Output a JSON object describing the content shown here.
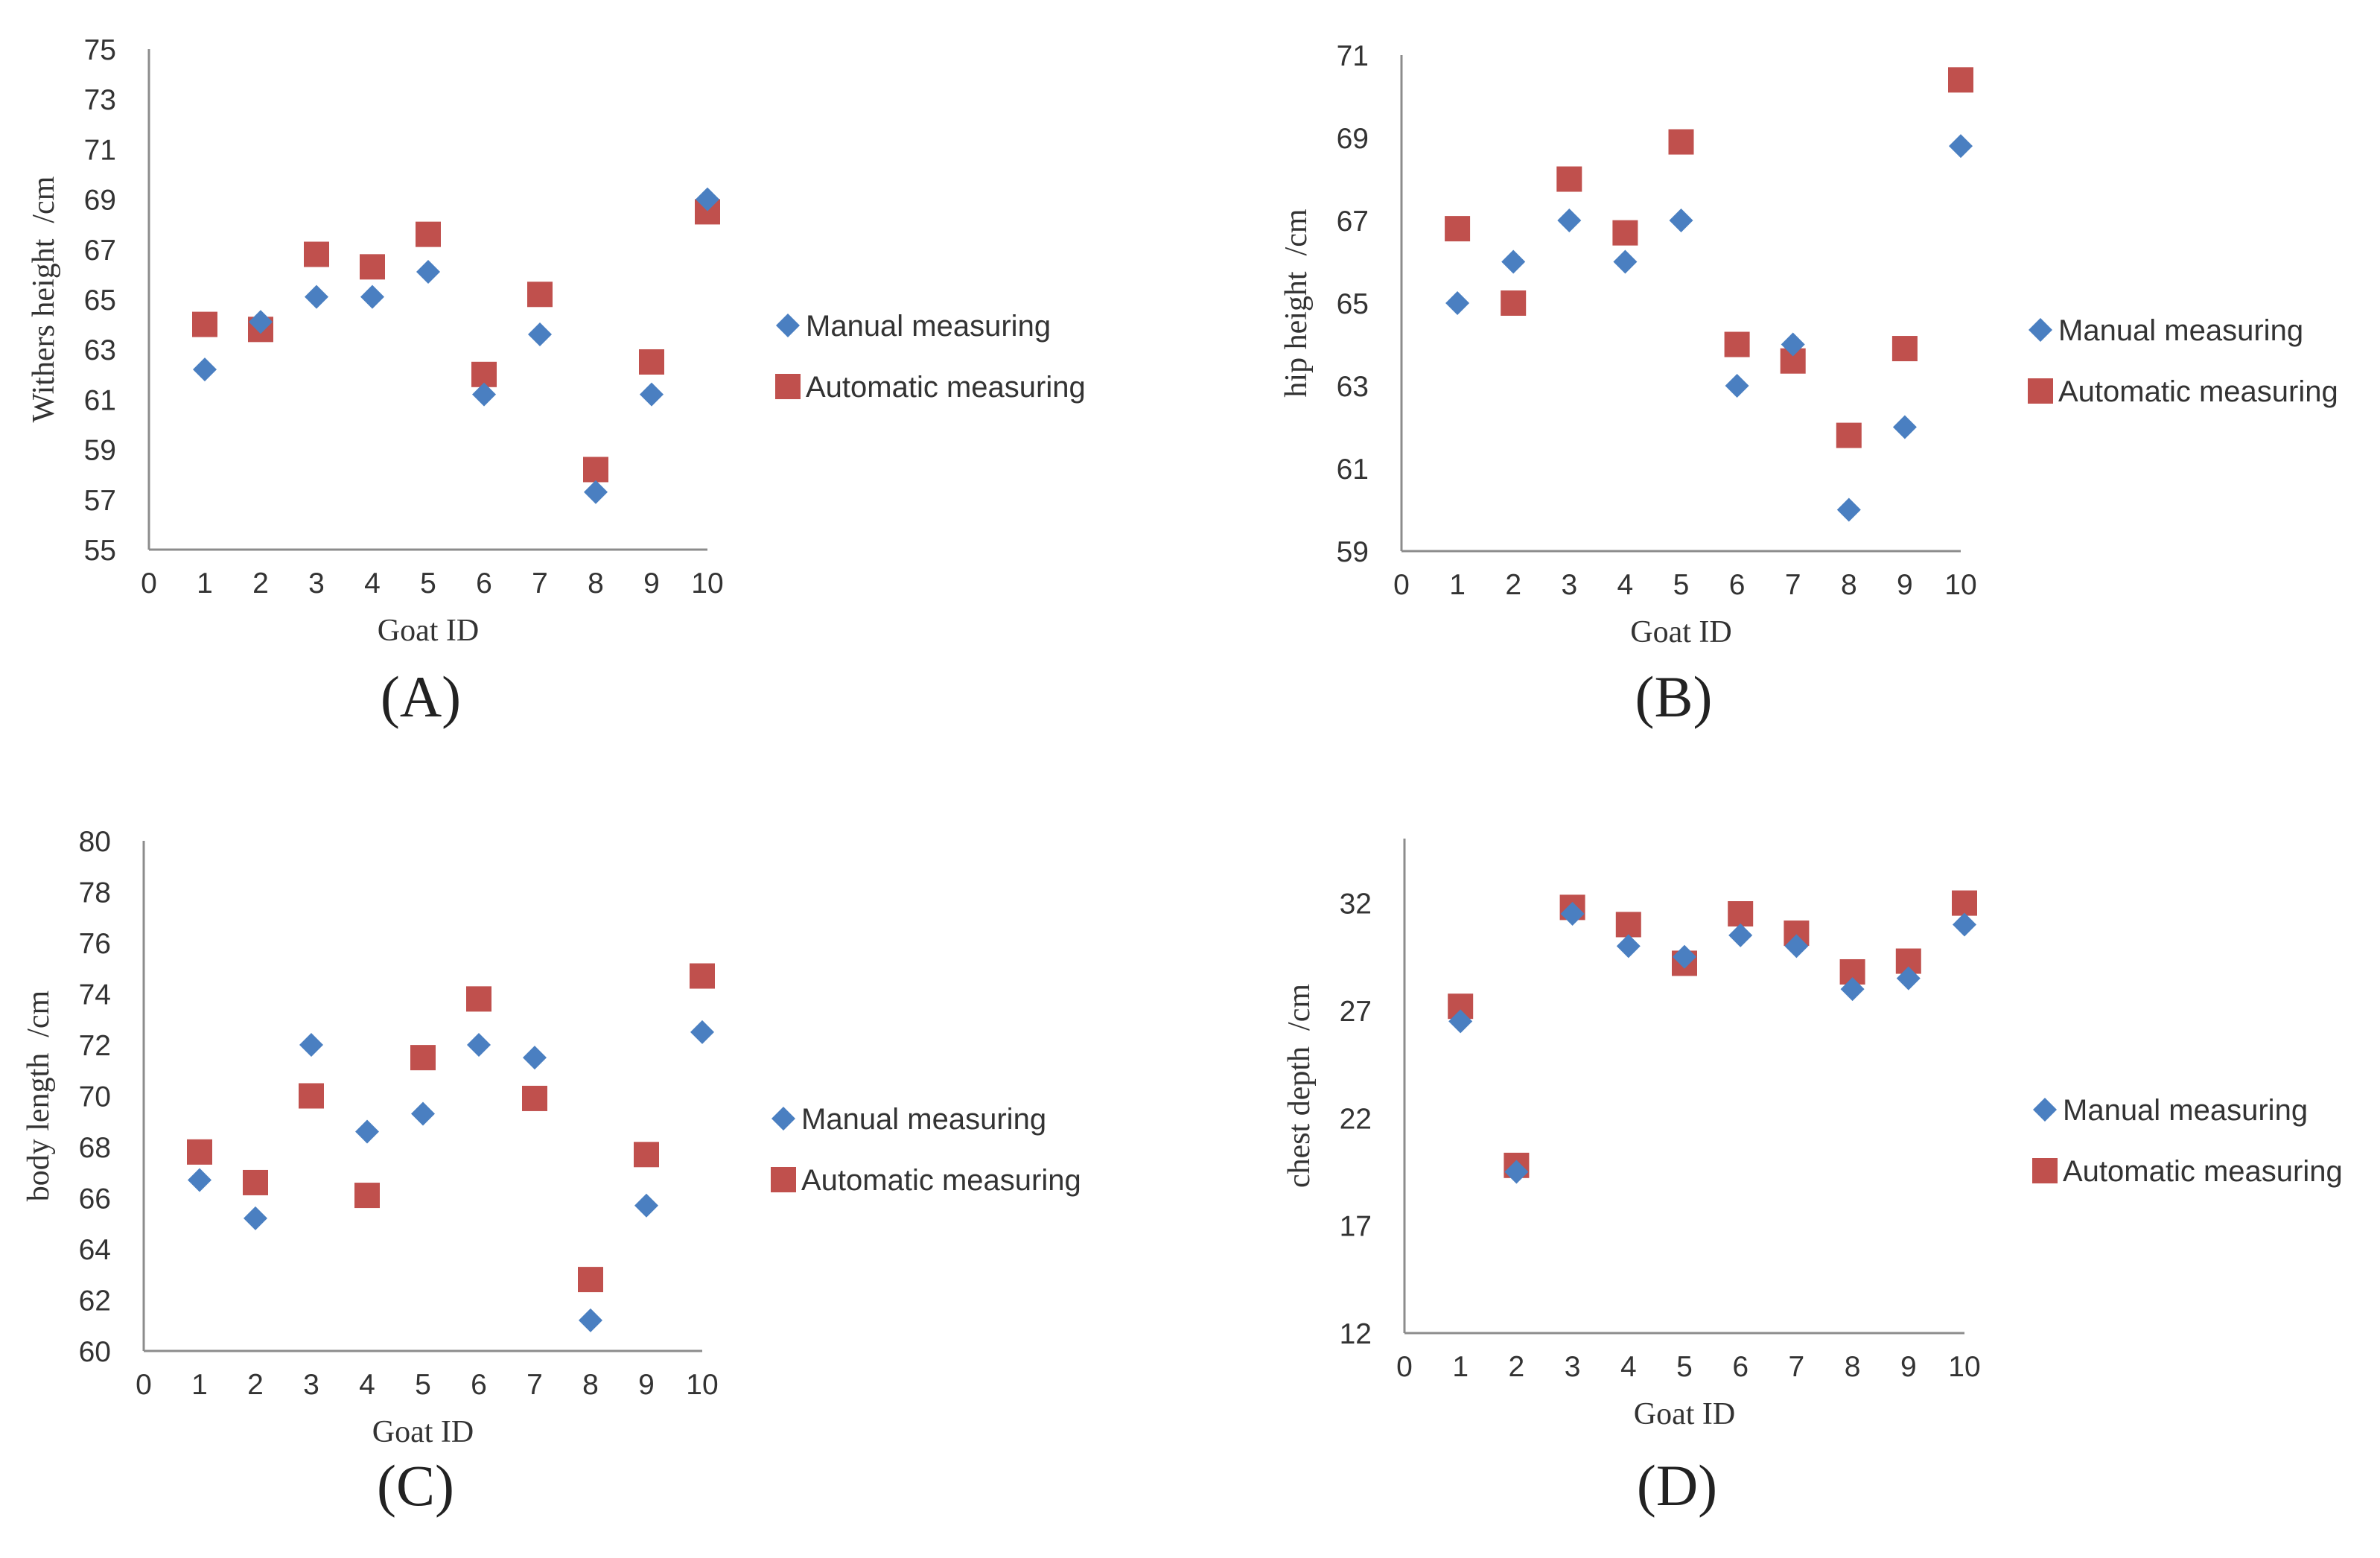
{
  "colors": {
    "manual": "#4a7fc1",
    "automatic": "#c0504d"
  },
  "chart_data": [
    {
      "type": "scatter",
      "panel_label": "(A)",
      "xlabel": "Goat ID",
      "ylabel": "Withers height  /cm",
      "xlim": [
        0,
        10
      ],
      "ylim": [
        55,
        75
      ],
      "xticks": [
        0,
        1,
        2,
        3,
        4,
        5,
        6,
        7,
        8,
        9,
        10
      ],
      "yticks": [
        55,
        57,
        59,
        61,
        63,
        65,
        67,
        69,
        71,
        73,
        75
      ],
      "legend_position": "right",
      "series": [
        {
          "name": "Manual measuring",
          "marker": "diamond",
          "x": [
            1,
            2,
            3,
            4,
            5,
            6,
            7,
            8,
            9,
            10
          ],
          "y": [
            62.2,
            64.1,
            65.1,
            65.1,
            66.1,
            61.2,
            63.6,
            57.3,
            61.2,
            69.0
          ]
        },
        {
          "name": "Automatic measuring",
          "marker": "square",
          "x": [
            1,
            2,
            3,
            4,
            5,
            6,
            7,
            8,
            9,
            10
          ],
          "y": [
            64.0,
            63.8,
            66.8,
            66.3,
            67.6,
            62.0,
            65.2,
            58.2,
            62.5,
            68.5
          ]
        }
      ]
    },
    {
      "type": "scatter",
      "panel_label": "(B)",
      "xlabel": "Goat ID",
      "ylabel": "hip height  /cm",
      "xlim": [
        0,
        10
      ],
      "ylim": [
        59,
        71
      ],
      "xticks": [
        0,
        1,
        2,
        3,
        4,
        5,
        6,
        7,
        8,
        9,
        10
      ],
      "yticks": [
        59,
        61,
        63,
        65,
        67,
        69,
        71
      ],
      "legend_position": "right",
      "series": [
        {
          "name": "Manual measuring",
          "marker": "diamond",
          "x": [
            1,
            2,
            3,
            4,
            5,
            6,
            7,
            8,
            9,
            10
          ],
          "y": [
            65.0,
            66.0,
            67.0,
            66.0,
            67.0,
            63.0,
            64.0,
            60.0,
            62.0,
            68.8
          ]
        },
        {
          "name": "Automatic measuring",
          "marker": "square",
          "x": [
            1,
            2,
            3,
            4,
            5,
            6,
            7,
            8,
            9,
            10
          ],
          "y": [
            66.8,
            65.0,
            68.0,
            66.7,
            68.9,
            64.0,
            63.6,
            61.8,
            63.9,
            70.4
          ]
        }
      ]
    },
    {
      "type": "scatter",
      "panel_label": "(C)",
      "xlabel": "Goat ID",
      "ylabel": "body length  /cm",
      "xlim": [
        0,
        10
      ],
      "ylim": [
        60,
        80
      ],
      "xticks": [
        0,
        1,
        2,
        3,
        4,
        5,
        6,
        7,
        8,
        9,
        10
      ],
      "yticks": [
        60,
        62,
        64,
        66,
        68,
        70,
        72,
        74,
        76,
        78,
        80
      ],
      "legend_position": "right",
      "series": [
        {
          "name": "Manual measuring",
          "marker": "diamond",
          "x": [
            1,
            2,
            3,
            4,
            5,
            6,
            7,
            8,
            9,
            10
          ],
          "y": [
            66.7,
            65.2,
            72.0,
            68.6,
            69.3,
            72.0,
            71.5,
            61.2,
            65.7,
            72.5
          ]
        },
        {
          "name": "Automatic measuring",
          "marker": "square",
          "x": [
            1,
            2,
            3,
            4,
            5,
            6,
            7,
            8,
            9,
            10
          ],
          "y": [
            67.8,
            66.6,
            70.0,
            66.1,
            71.5,
            73.8,
            69.9,
            62.8,
            67.7,
            74.7
          ]
        }
      ]
    },
    {
      "type": "scatter",
      "panel_label": "(D)",
      "xlabel": "Goat ID",
      "ylabel": "chest depth  /cm",
      "xlim": [
        0,
        10
      ],
      "ylim": [
        12,
        35
      ],
      "xticks": [
        0,
        1,
        2,
        3,
        4,
        5,
        6,
        7,
        8,
        9,
        10
      ],
      "yticks": [
        12,
        17,
        22,
        27,
        32
      ],
      "legend_position": "right",
      "series": [
        {
          "name": "Manual measuring",
          "marker": "diamond",
          "x": [
            1,
            2,
            3,
            4,
            5,
            6,
            7,
            8,
            9,
            10
          ],
          "y": [
            26.5,
            19.5,
            31.5,
            30.0,
            29.5,
            30.5,
            30.0,
            28.0,
            28.5,
            31.0
          ]
        },
        {
          "name": "Automatic measuring",
          "marker": "square",
          "x": [
            1,
            2,
            3,
            4,
            5,
            6,
            7,
            8,
            9,
            10
          ],
          "y": [
            27.2,
            19.8,
            31.8,
            31.0,
            29.2,
            31.5,
            30.6,
            28.8,
            29.3,
            32.0
          ]
        }
      ]
    }
  ]
}
